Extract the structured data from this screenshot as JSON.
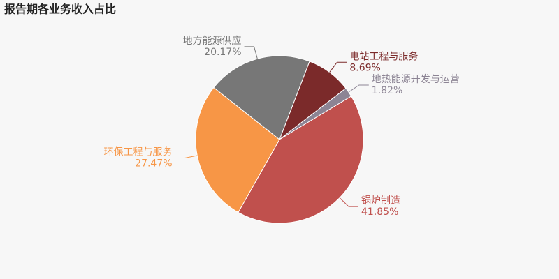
{
  "chart_data": {
    "type": "pie",
    "title": "报告期各业务收入占比",
    "categories": [
      "电站工程与服务",
      "地热能源开发与运营",
      "锅炉制造",
      "环保工程与服务",
      "地方能源供应"
    ],
    "values": [
      8.69,
      1.82,
      41.85,
      27.47,
      20.17
    ],
    "value_labels": [
      "8.69%",
      "1.82%",
      "41.85%",
      "27.47%",
      "20.17%"
    ],
    "colors": [
      "#7b2a2a",
      "#8c8494",
      "#c0504d",
      "#f79646",
      "#777777"
    ]
  }
}
